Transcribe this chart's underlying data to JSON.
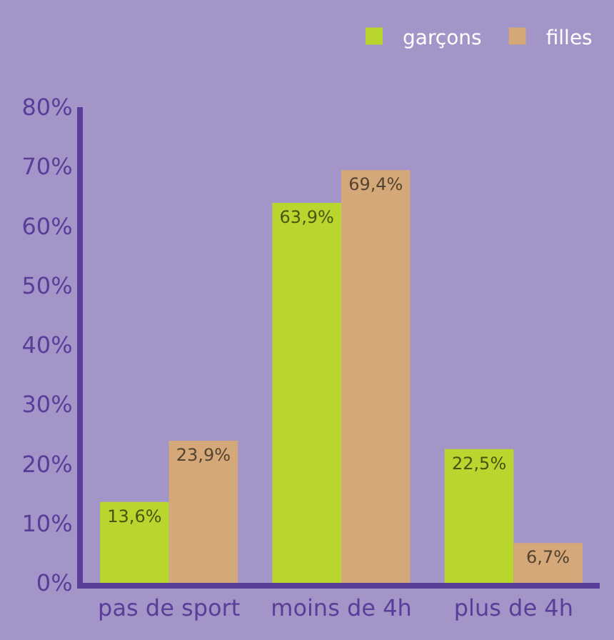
{
  "chart_data": {
    "type": "bar",
    "categories": [
      "pas de sport",
      "moins de 4h",
      "plus de 4h"
    ],
    "series": [
      {
        "name": "garçons",
        "color": "#b8d62e",
        "values": [
          13.6,
          63.9,
          22.5
        ],
        "value_labels": [
          "13,6%",
          "63,9%",
          "22,5%"
        ]
      },
      {
        "name": "filles",
        "color": "#d4a878",
        "values": [
          23.9,
          69.4,
          6.7
        ],
        "value_labels": [
          "23,9%",
          "69,4%",
          "6,7%"
        ]
      }
    ],
    "ylim": [
      0,
      80
    ],
    "yticks": [
      {
        "value": 0,
        "label": "0%"
      },
      {
        "value": 10,
        "label": "10%"
      },
      {
        "value": 20,
        "label": "20%"
      },
      {
        "value": 30,
        "label": "30%"
      },
      {
        "value": 40,
        "label": "40%"
      },
      {
        "value": 50,
        "label": "50%"
      },
      {
        "value": 60,
        "label": "60%"
      },
      {
        "value": 70,
        "label": "70%"
      },
      {
        "value": 80,
        "label": "80%"
      }
    ],
    "grid": false,
    "legend": "top right"
  }
}
